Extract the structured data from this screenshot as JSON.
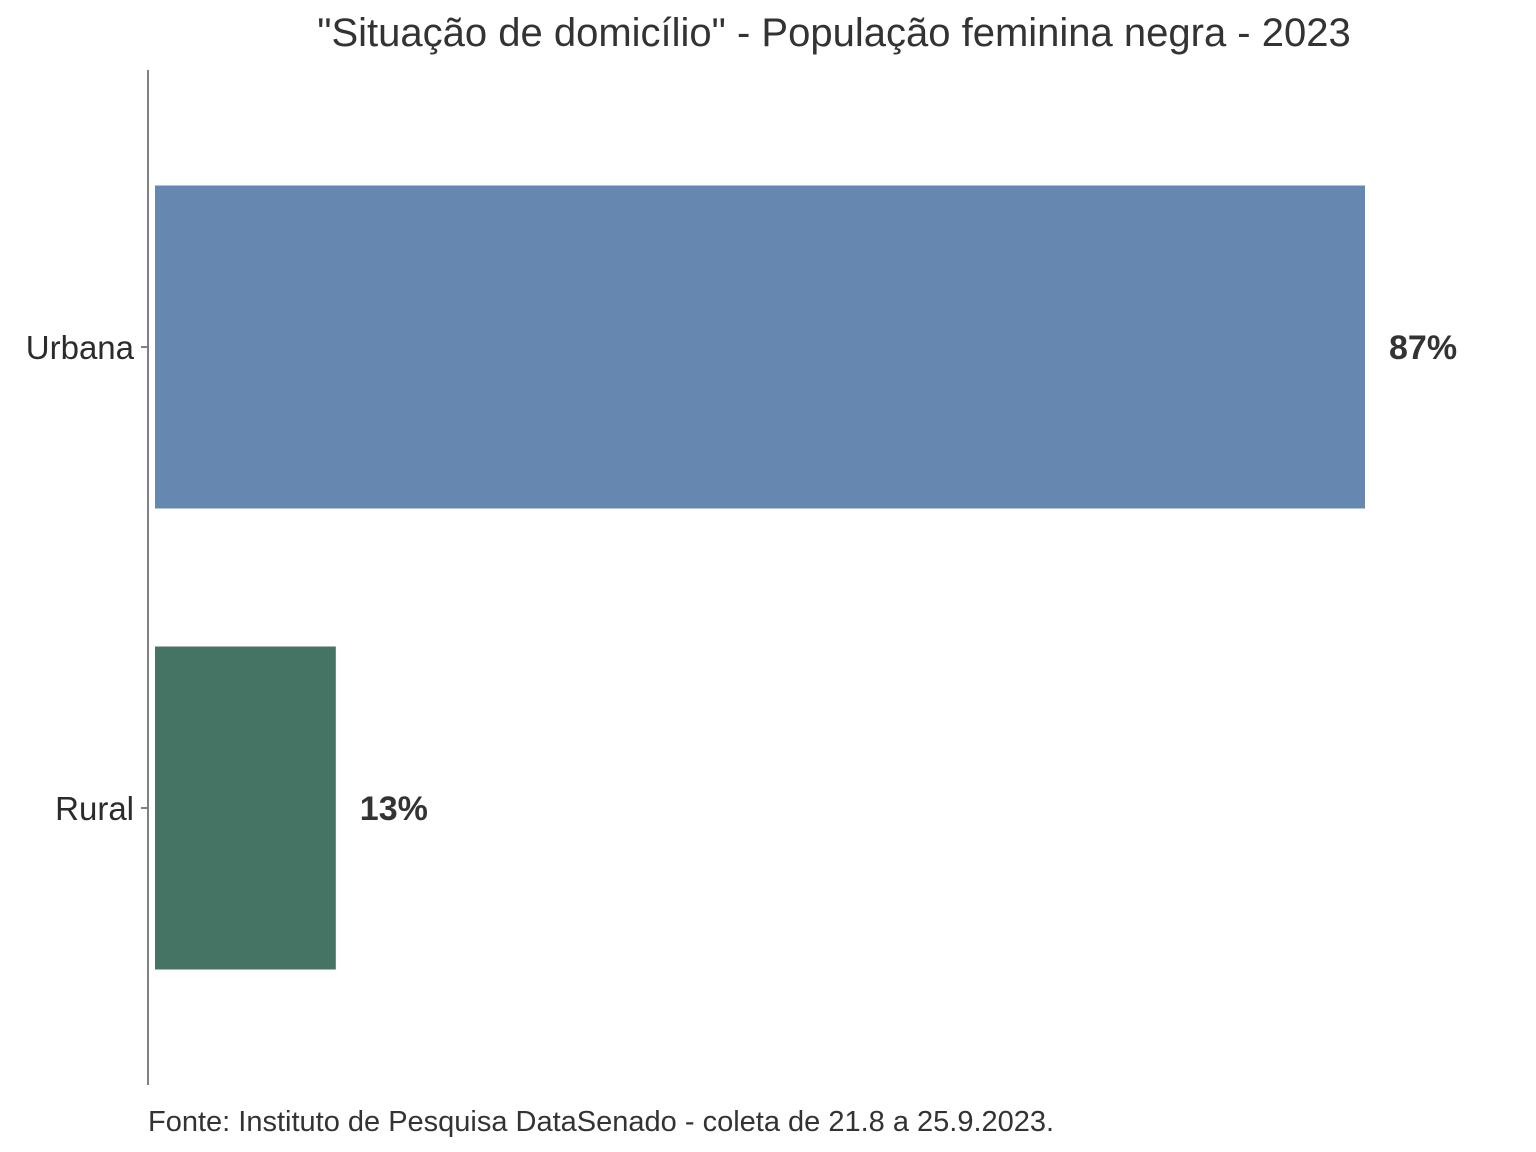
{
  "chart_data": {
    "type": "bar",
    "orientation": "horizontal",
    "title": "\"Situação de domicílio\" - População feminina negra - 2023",
    "caption": "Fonte: Instituto de Pesquisa DataSenado - coleta de 21.8 a 25.9.2023.",
    "categories": [
      "Urbana",
      "Rural"
    ],
    "values": [
      87,
      13
    ],
    "value_labels": [
      "87%",
      "13%"
    ],
    "colors": [
      "#6688b0",
      "#457464"
    ],
    "xlim": [
      0,
      87
    ],
    "grid": false,
    "legend": "none"
  }
}
